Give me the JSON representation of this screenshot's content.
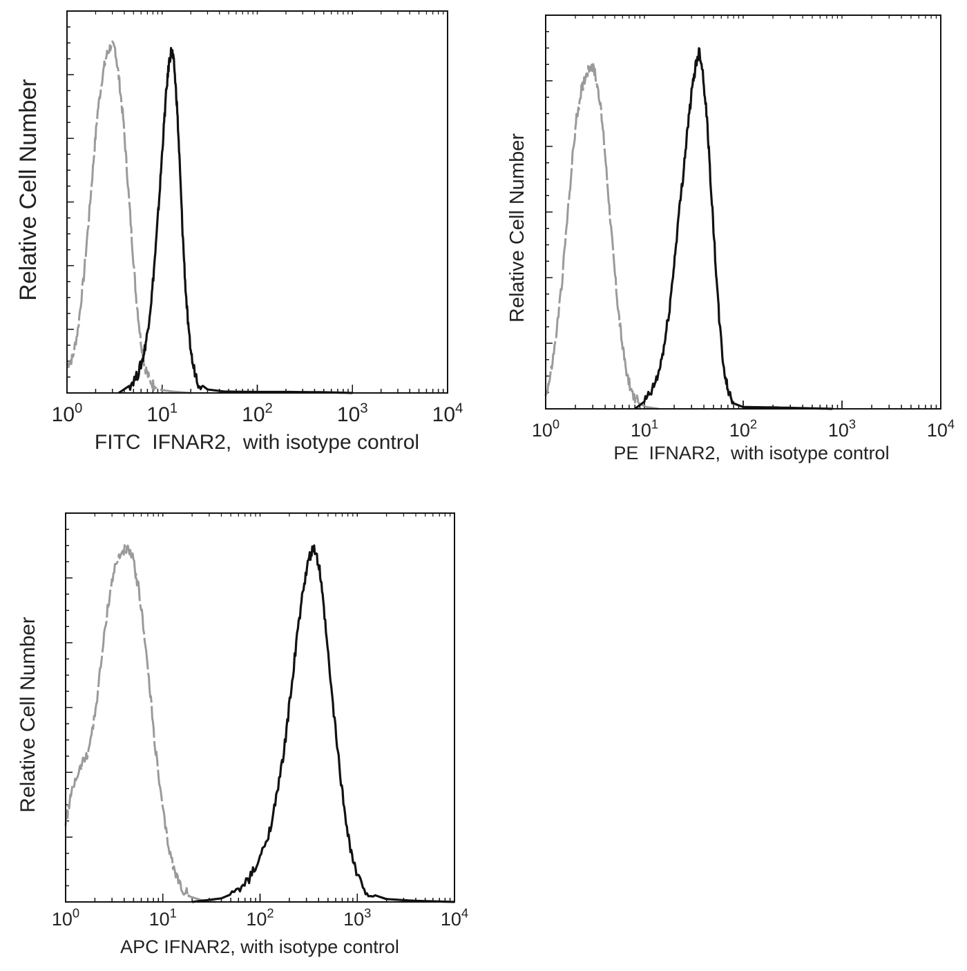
{
  "figure": {
    "panels": [
      "fitc",
      "pe",
      "apc"
    ]
  },
  "colors": {
    "antibody_series": "#111111",
    "isotype_series": "#9a9a9a",
    "axes": "#111111"
  },
  "chart_data": [
    {
      "id": "fitc",
      "type": "line",
      "xscale": "log",
      "xlim": [
        1,
        10000
      ],
      "ylim": [
        0,
        1
      ],
      "ylabel": "Relative Cell Number",
      "xlabel": "FITC  IFNAR2,  with isotype control",
      "xticks": [
        {
          "value": 1,
          "base": "10",
          "exp": "0"
        },
        {
          "value": 10,
          "base": "10",
          "exp": "1"
        },
        {
          "value": 100,
          "base": "10",
          "exp": "2"
        },
        {
          "value": 1000,
          "base": "10",
          "exp": "3"
        },
        {
          "value": 10000,
          "base": "10",
          "exp": "4"
        }
      ],
      "grid": false,
      "series": [
        {
          "role": "isotype",
          "style": "dashed",
          "points": [
            [
              1.0,
              0.08
            ],
            [
              1.15,
              0.1
            ],
            [
              1.3,
              0.18
            ],
            [
              1.5,
              0.33
            ],
            [
              1.7,
              0.5
            ],
            [
              1.9,
              0.66
            ],
            [
              2.1,
              0.8
            ],
            [
              2.35,
              0.9
            ],
            [
              2.6,
              0.96
            ],
            [
              2.9,
              0.99
            ],
            [
              3.2,
              0.98
            ],
            [
              3.5,
              0.9
            ],
            [
              3.9,
              0.78
            ],
            [
              4.3,
              0.62
            ],
            [
              4.8,
              0.44
            ],
            [
              5.3,
              0.28
            ],
            [
              5.9,
              0.16
            ],
            [
              6.5,
              0.08
            ],
            [
              7.3,
              0.04
            ],
            [
              8.5,
              0.015
            ],
            [
              10,
              0.008
            ],
            [
              13,
              0.004
            ],
            [
              20,
              0.0
            ]
          ]
        },
        {
          "role": "antibody",
          "style": "solid",
          "points": [
            [
              3.5,
              0.0
            ],
            [
              4.5,
              0.02
            ],
            [
              5.5,
              0.05
            ],
            [
              6.3,
              0.1
            ],
            [
              7.0,
              0.17
            ],
            [
              7.8,
              0.28
            ],
            [
              8.6,
              0.42
            ],
            [
              9.4,
              0.57
            ],
            [
              10.2,
              0.72
            ],
            [
              11.0,
              0.85
            ],
            [
              11.8,
              0.94
            ],
            [
              12.6,
              0.98
            ],
            [
              13.4,
              0.93
            ],
            [
              14.3,
              0.82
            ],
            [
              15.3,
              0.65
            ],
            [
              16.4,
              0.46
            ],
            [
              17.6,
              0.3
            ],
            [
              19.0,
              0.17
            ],
            [
              21.0,
              0.08
            ],
            [
              24.0,
              0.03
            ],
            [
              30.0,
              0.01
            ],
            [
              45.0,
              0.004
            ],
            [
              100,
              0.003
            ],
            [
              200,
              0.003
            ],
            [
              500,
              0.002
            ],
            [
              1000,
              0.0
            ]
          ]
        }
      ]
    },
    {
      "id": "pe",
      "type": "line",
      "xscale": "log",
      "xlim": [
        1,
        10000
      ],
      "ylim": [
        0,
        1
      ],
      "ylabel": "Relative Cell Number",
      "xlabel": "PE  IFNAR2,  with isotype control",
      "xticks": [
        {
          "value": 1,
          "base": "10",
          "exp": "0"
        },
        {
          "value": 10,
          "base": "10",
          "exp": "1"
        },
        {
          "value": 100,
          "base": "10",
          "exp": "2"
        },
        {
          "value": 1000,
          "base": "10",
          "exp": "3"
        },
        {
          "value": 10000,
          "base": "10",
          "exp": "4"
        }
      ],
      "grid": false,
      "series": [
        {
          "role": "isotype",
          "style": "dashed",
          "points": [
            [
              1.0,
              0.04
            ],
            [
              1.1,
              0.08
            ],
            [
              1.25,
              0.18
            ],
            [
              1.45,
              0.34
            ],
            [
              1.65,
              0.52
            ],
            [
              1.85,
              0.68
            ],
            [
              2.05,
              0.8
            ],
            [
              2.3,
              0.88
            ],
            [
              2.55,
              0.92
            ],
            [
              2.85,
              0.95
            ],
            [
              3.15,
              0.93
            ],
            [
              3.5,
              0.86
            ],
            [
              3.9,
              0.74
            ],
            [
              4.35,
              0.58
            ],
            [
              4.85,
              0.42
            ],
            [
              5.4,
              0.28
            ],
            [
              6.0,
              0.17
            ],
            [
              6.7,
              0.09
            ],
            [
              7.6,
              0.04
            ],
            [
              8.8,
              0.015
            ],
            [
              10.5,
              0.005
            ],
            [
              14,
              0.0
            ]
          ]
        },
        {
          "role": "antibody",
          "style": "solid",
          "points": [
            [
              8.0,
              0.0
            ],
            [
              10,
              0.02
            ],
            [
              12,
              0.05
            ],
            [
              14,
              0.1
            ],
            [
              16,
              0.18
            ],
            [
              18,
              0.28
            ],
            [
              20,
              0.4
            ],
            [
              22,
              0.52
            ],
            [
              24.5,
              0.64
            ],
            [
              27,
              0.76
            ],
            [
              30,
              0.87
            ],
            [
              33,
              0.95
            ],
            [
              36,
              0.99
            ],
            [
              39,
              0.93
            ],
            [
              43,
              0.8
            ],
            [
              47,
              0.62
            ],
            [
              52,
              0.42
            ],
            [
              57,
              0.25
            ],
            [
              63,
              0.12
            ],
            [
              70,
              0.05
            ],
            [
              80,
              0.015
            ],
            [
              100,
              0.005
            ],
            [
              200,
              0.004
            ],
            [
              400,
              0.002
            ],
            [
              800,
              0.0
            ]
          ]
        }
      ]
    },
    {
      "id": "apc",
      "type": "line",
      "xscale": "log",
      "xlim": [
        1,
        10000
      ],
      "ylim": [
        0,
        1
      ],
      "ylabel": "Relative Cell Number",
      "xlabel": "APC IFNAR2, with isotype control",
      "xticks": [
        {
          "value": 1,
          "base": "10",
          "exp": "0"
        },
        {
          "value": 10,
          "base": "10",
          "exp": "1"
        },
        {
          "value": 100,
          "base": "10",
          "exp": "2"
        },
        {
          "value": 1000,
          "base": "10",
          "exp": "3"
        },
        {
          "value": 10000,
          "base": "10",
          "exp": "4"
        }
      ],
      "grid": false,
      "series": [
        {
          "role": "isotype",
          "style": "dashed",
          "points": [
            [
              1.0,
              0.22
            ],
            [
              1.1,
              0.28
            ],
            [
              1.25,
              0.34
            ],
            [
              1.45,
              0.38
            ],
            [
              1.7,
              0.42
            ],
            [
              2.0,
              0.52
            ],
            [
              2.3,
              0.66
            ],
            [
              2.7,
              0.82
            ],
            [
              3.1,
              0.92
            ],
            [
              3.6,
              0.97
            ],
            [
              4.2,
              0.99
            ],
            [
              4.9,
              0.96
            ],
            [
              5.6,
              0.88
            ],
            [
              6.4,
              0.76
            ],
            [
              7.3,
              0.6
            ],
            [
              8.3,
              0.44
            ],
            [
              9.5,
              0.3
            ],
            [
              11,
              0.18
            ],
            [
              13,
              0.09
            ],
            [
              15.5,
              0.04
            ],
            [
              19,
              0.015
            ],
            [
              25,
              0.005
            ],
            [
              35,
              0.0
            ]
          ]
        },
        {
          "role": "antibody",
          "style": "solid",
          "points": [
            [
              20,
              0.0
            ],
            [
              40,
              0.01
            ],
            [
              60,
              0.03
            ],
            [
              80,
              0.07
            ],
            [
              100,
              0.12
            ],
            [
              125,
              0.2
            ],
            [
              150,
              0.3
            ],
            [
              180,
              0.44
            ],
            [
              210,
              0.6
            ],
            [
              245,
              0.76
            ],
            [
              280,
              0.88
            ],
            [
              320,
              0.96
            ],
            [
              360,
              0.99
            ],
            [
              410,
              0.93
            ],
            [
              460,
              0.8
            ],
            [
              530,
              0.62
            ],
            [
              620,
              0.44
            ],
            [
              720,
              0.28
            ],
            [
              850,
              0.15
            ],
            [
              1000,
              0.07
            ],
            [
              1300,
              0.025
            ],
            [
              2000,
              0.008
            ],
            [
              4000,
              0.003
            ],
            [
              10000,
              0.0
            ]
          ]
        }
      ]
    }
  ]
}
